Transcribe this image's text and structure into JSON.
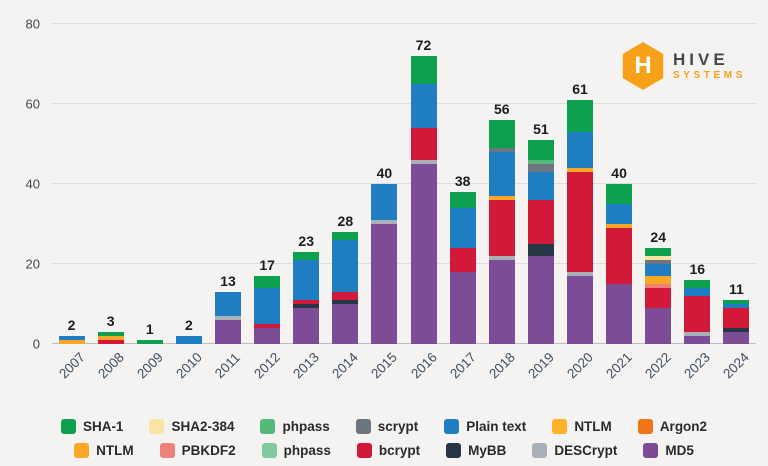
{
  "logo": {
    "hex_letter": "H",
    "line1": "HIVE",
    "line2": "SYSTEMS"
  },
  "chart_data": {
    "type": "bar",
    "stacked": true,
    "title": "",
    "xlabel": "",
    "ylabel": "",
    "ylim": [
      0,
      80
    ],
    "yticks": [
      0,
      20,
      40,
      60,
      80
    ],
    "grid": true,
    "legend_position": "bottom",
    "categories": [
      "2007",
      "2008",
      "2009",
      "2010",
      "2011",
      "2012",
      "2013",
      "2014",
      "2015",
      "2016",
      "2017",
      "2018",
      "2019",
      "2020",
      "2021",
      "2022",
      "2023",
      "2024"
    ],
    "totals": [
      2,
      3,
      1,
      2,
      13,
      17,
      23,
      28,
      40,
      72,
      38,
      56,
      51,
      61,
      40,
      24,
      16,
      11
    ],
    "series": [
      {
        "name": "MD5",
        "color": "#7d4c97",
        "values": [
          0,
          0,
          0,
          0,
          6,
          4,
          9,
          10,
          30,
          45,
          18,
          21,
          22,
          17,
          15,
          9,
          2,
          3
        ]
      },
      {
        "name": "MyBB",
        "color": "#263645",
        "values": [
          0,
          0,
          0,
          0,
          0,
          0,
          1,
          1,
          0,
          0,
          0,
          0,
          3,
          0,
          0,
          0,
          0,
          1
        ]
      },
      {
        "name": "DESCrypt",
        "color": "#a9b0b8",
        "values": [
          0,
          0,
          0,
          0,
          1,
          0,
          0,
          0,
          1,
          1,
          0,
          1,
          0,
          1,
          0,
          0,
          1,
          0
        ]
      },
      {
        "name": "bcrypt",
        "color": "#d2193a",
        "values": [
          0,
          1,
          0,
          0,
          0,
          1,
          1,
          2,
          0,
          8,
          6,
          14,
          11,
          25,
          14,
          5,
          9,
          5
        ]
      },
      {
        "name": "PBKDF2",
        "color": "#ee827a",
        "values": [
          0,
          0,
          0,
          0,
          0,
          0,
          0,
          0,
          0,
          0,
          0,
          0,
          0,
          0,
          0,
          1,
          0,
          0
        ]
      },
      {
        "name": "NTLM",
        "color": "#f9a825",
        "values": [
          1,
          1,
          0,
          0,
          0,
          0,
          0,
          0,
          0,
          0,
          0,
          1,
          0,
          1,
          1,
          2,
          0,
          0
        ]
      },
      {
        "name": "Argon2",
        "color": "#ee7518",
        "values": [
          0,
          0,
          0,
          0,
          0,
          0,
          0,
          0,
          0,
          0,
          0,
          0,
          0,
          0,
          0,
          0,
          0,
          0
        ]
      },
      {
        "name": "Plain text",
        "color": "#1f7ec2",
        "values": [
          1,
          0,
          0,
          2,
          6,
          9,
          10,
          13,
          9,
          11,
          10,
          11,
          7,
          9,
          5,
          3,
          2,
          1
        ]
      },
      {
        "name": "scrypt",
        "color": "#6d7680",
        "values": [
          0,
          0,
          0,
          0,
          0,
          0,
          0,
          0,
          0,
          0,
          0,
          1,
          2,
          0,
          0,
          1,
          0,
          0
        ]
      },
      {
        "name": "phpass",
        "color": "#56b87b",
        "values": [
          0,
          0,
          0,
          0,
          0,
          0,
          0,
          0,
          0,
          0,
          0,
          0,
          1,
          0,
          0,
          0,
          0,
          0
        ]
      },
      {
        "name": "SHA2-384",
        "color": "#fbe3a3",
        "values": [
          0,
          0,
          0,
          0,
          0,
          0,
          0,
          0,
          0,
          0,
          0,
          0,
          0,
          0,
          0,
          1,
          0,
          0
        ]
      },
      {
        "name": "SHA-1",
        "color": "#0da04f",
        "values": [
          0,
          1,
          1,
          0,
          0,
          3,
          2,
          2,
          0,
          7,
          4,
          7,
          5,
          8,
          5,
          2,
          2,
          1
        ]
      }
    ]
  },
  "legend": {
    "rows": [
      [
        {
          "label": "SHA-1",
          "color": "#0da04f"
        },
        {
          "label": "SHA2-384",
          "color": "#fbe3a3"
        },
        {
          "label": "phpass",
          "color": "#56b87b"
        },
        {
          "label": "scrypt",
          "color": "#6d7680"
        },
        {
          "label": "Plain text",
          "color": "#1f7ec2"
        },
        {
          "label": "NTLM",
          "color": "#ffb12a"
        },
        {
          "label": "Argon2",
          "color": "#ee7518"
        }
      ],
      [
        {
          "label": "NTLM",
          "color": "#f9a825"
        },
        {
          "label": "PBKDF2",
          "color": "#ee827a"
        },
        {
          "label": "phpass",
          "color": "#7fcb9f"
        },
        {
          "label": "bcrypt",
          "color": "#d2193a"
        },
        {
          "label": "MyBB",
          "color": "#263645"
        },
        {
          "label": "DESCrypt",
          "color": "#a9b0b8"
        },
        {
          "label": "MD5",
          "color": "#7d4c97"
        }
      ]
    ]
  }
}
